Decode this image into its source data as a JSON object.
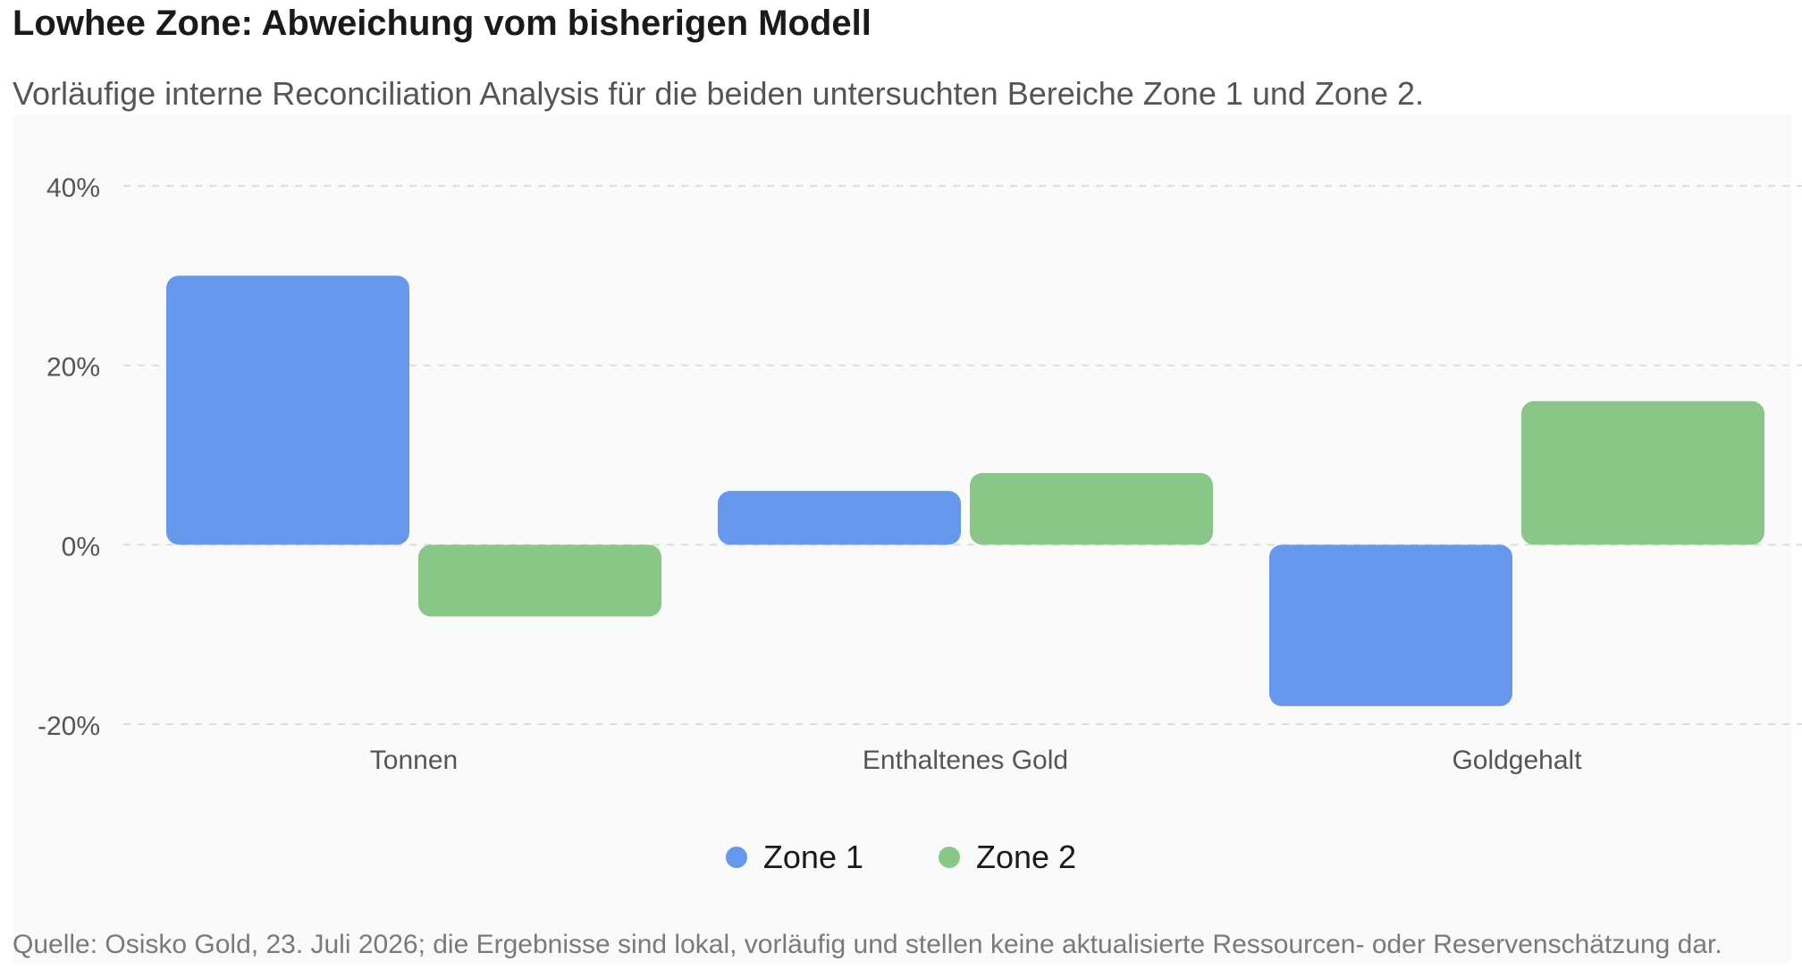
{
  "title": "Lowhee Zone: Abweichung vom bisherigen Modell",
  "subtitle": "Vorläufige interne Reconciliation Analysis für die beiden untersuchten Bereiche Zone 1 und Zone 2.",
  "source": "Quelle: Osisko Gold, 23. Juli 2026; die Ergebnisse sind lokal, vorläufig und stellen keine aktualisierte Ressourcen- oder Reservenschätzung dar.",
  "chart_data": {
    "type": "bar",
    "categories": [
      "Tonnen",
      "Enthaltenes Gold",
      "Goldgehalt"
    ],
    "series": [
      {
        "name": "Zone 1",
        "color": "#6699ee",
        "values": [
          30,
          6,
          -18
        ]
      },
      {
        "name": "Zone 2",
        "color": "#88c788",
        "values": [
          -8,
          8,
          16
        ]
      }
    ],
    "yticks": [
      -20,
      0,
      20,
      40
    ],
    "ytick_labels": [
      "-20%",
      "0%",
      "20%",
      "40%"
    ],
    "ylim": [
      -20,
      40
    ],
    "grid": true,
    "grid_style": "dashed",
    "legend_position": "bottom-center",
    "xlabel": "",
    "ylabel": ""
  }
}
